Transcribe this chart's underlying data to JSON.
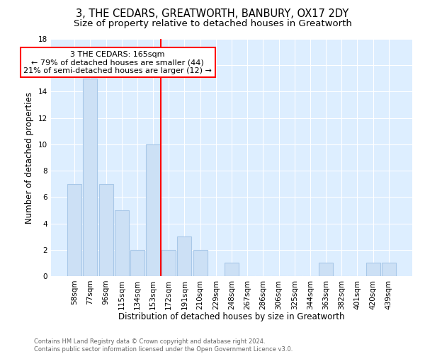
{
  "title": "3, THE CEDARS, GREATWORTH, BANBURY, OX17 2DY",
  "subtitle": "Size of property relative to detached houses in Greatworth",
  "xlabel": "Distribution of detached houses by size in Greatworth",
  "ylabel": "Number of detached properties",
  "bar_color": "#cce0f5",
  "bar_edge_color": "#a8c8e8",
  "background_color": "#ddeeff",
  "categories": [
    "58sqm",
    "77sqm",
    "96sqm",
    "115sqm",
    "134sqm",
    "153sqm",
    "172sqm",
    "191sqm",
    "210sqm",
    "229sqm",
    "248sqm",
    "267sqm",
    "286sqm",
    "306sqm",
    "325sqm",
    "344sqm",
    "363sqm",
    "382sqm",
    "401sqm",
    "420sqm",
    "439sqm"
  ],
  "values": [
    7,
    15,
    7,
    5,
    2,
    10,
    2,
    3,
    2,
    0,
    1,
    0,
    0,
    0,
    0,
    0,
    1,
    0,
    0,
    1,
    1
  ],
  "red_line_index": 6,
  "annotation_text": "3 THE CEDARS: 165sqm\n← 79% of detached houses are smaller (44)\n21% of semi-detached houses are larger (12) →",
  "ylim": [
    0,
    18
  ],
  "yticks": [
    0,
    2,
    4,
    6,
    8,
    10,
    12,
    14,
    16,
    18
  ],
  "footer_text": "Contains HM Land Registry data © Crown copyright and database right 2024.\nContains public sector information licensed under the Open Government Licence v3.0.",
  "title_fontsize": 10.5,
  "subtitle_fontsize": 9.5,
  "ylabel_fontsize": 8.5,
  "xlabel_fontsize": 8.5,
  "tick_fontsize": 7.5,
  "footer_fontsize": 6.0,
  "annotation_fontsize": 8.0
}
